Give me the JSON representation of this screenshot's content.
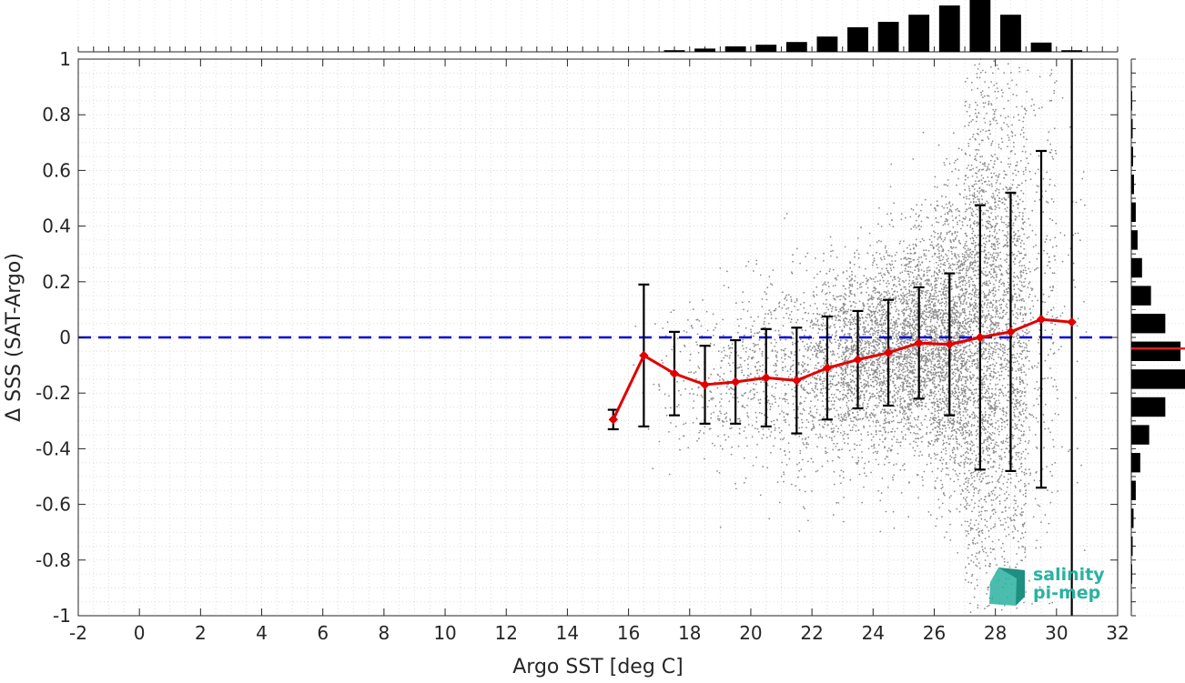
{
  "chart_data": {
    "type": "scatter",
    "xlabel": "Argo SST [deg C]",
    "ylabel": "Δ SSS (SAT-Argo)",
    "xlim": [
      -2,
      32
    ],
    "ylim": [
      -1,
      1
    ],
    "x_ticks": [
      "-2",
      "0",
      "2",
      "4",
      "6",
      "8",
      "10",
      "12",
      "14",
      "16",
      "18",
      "20",
      "22",
      "24",
      "26",
      "28",
      "30",
      "32"
    ],
    "y_ticks": [
      "-1",
      "-0.8",
      "-0.6",
      "-0.4",
      "-0.2",
      "0",
      "0.2",
      "0.4",
      "0.6",
      "0.8",
      "1"
    ],
    "grid": "minor dotted",
    "zero_line": {
      "y": 0,
      "color": "#0000dd",
      "style": "dashed"
    },
    "binned_mean": {
      "color": "#e00000",
      "x": [
        15.5,
        16.5,
        17.5,
        18.5,
        19.5,
        20.5,
        21.5,
        22.5,
        23.5,
        24.5,
        25.5,
        26.5,
        27.5,
        28.5,
        29.5,
        30.5
      ],
      "y": [
        -0.295,
        -0.065,
        -0.13,
        -0.17,
        -0.16,
        -0.145,
        -0.155,
        -0.11,
        -0.08,
        -0.055,
        -0.02,
        -0.025,
        0.0,
        0.02,
        0.065,
        0.055
      ],
      "std": [
        0.035,
        0.255,
        0.15,
        0.14,
        0.15,
        0.175,
        0.19,
        0.185,
        0.175,
        0.19,
        0.2,
        0.255,
        0.475,
        0.5,
        0.605,
        1.2
      ]
    },
    "scatter_color": "#8c8c8c",
    "top_histogram": {
      "x": [
        15.5,
        16.5,
        17.5,
        18.5,
        19.5,
        20.5,
        21.5,
        22.5,
        23.5,
        24.5,
        25.5,
        26.5,
        27.5,
        28.5,
        29.5,
        30.5
      ],
      "counts": [
        0,
        0.005,
        0.03,
        0.06,
        0.1,
        0.13,
        0.18,
        0.28,
        0.45,
        0.55,
        0.68,
        0.85,
        1.0,
        0.68,
        0.17,
        0.03
      ]
    },
    "right_histogram": {
      "y": [
        0.95,
        0.85,
        0.75,
        0.65,
        0.55,
        0.45,
        0.35,
        0.25,
        0.15,
        0.05,
        -0.05,
        -0.15,
        -0.25,
        -0.35,
        -0.45,
        -0.55,
        -0.65,
        -0.75,
        -0.85,
        -0.95
      ],
      "counts": [
        0.005,
        0.01,
        0.015,
        0.02,
        0.03,
        0.05,
        0.07,
        0.12,
        0.22,
        0.38,
        0.55,
        0.6,
        0.38,
        0.2,
        0.1,
        0.05,
        0.025,
        0.015,
        0.01,
        0.005
      ],
      "mean_line_y": -0.04,
      "mean_line_color": "#e02020"
    },
    "logo": {
      "line1": "salinity",
      "line2": "pi-mep",
      "color": "#2ab2a0"
    }
  }
}
